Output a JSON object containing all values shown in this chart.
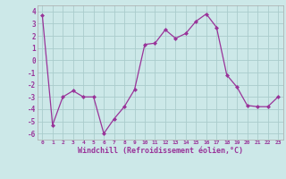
{
  "x": [
    0,
    1,
    2,
    3,
    4,
    5,
    6,
    7,
    8,
    9,
    10,
    11,
    12,
    13,
    14,
    15,
    16,
    17,
    18,
    19,
    20,
    21,
    22,
    23
  ],
  "y": [
    3.7,
    -5.3,
    -3.0,
    -2.5,
    -3.0,
    -3.0,
    -6.0,
    -4.8,
    -3.8,
    -2.4,
    1.3,
    1.4,
    2.5,
    1.8,
    2.2,
    3.2,
    3.8,
    2.7,
    -1.2,
    -2.2,
    -3.7,
    -3.8,
    -3.8,
    -3.0
  ],
  "line_color": "#993399",
  "marker_color": "#993399",
  "bg_color": "#cce8e8",
  "grid_color": "#aacccc",
  "xlabel": "Windchill (Refroidissement éolien,°C)",
  "ylabel_ticks": [
    4,
    3,
    2,
    1,
    0,
    -1,
    -2,
    -3,
    -4,
    -5,
    -6
  ],
  "ylim": [
    -6.5,
    4.5
  ],
  "xlim": [
    -0.5,
    23.5
  ],
  "tick_color": "#993399",
  "label_color": "#993399",
  "spine_color": "#aaaaaa"
}
